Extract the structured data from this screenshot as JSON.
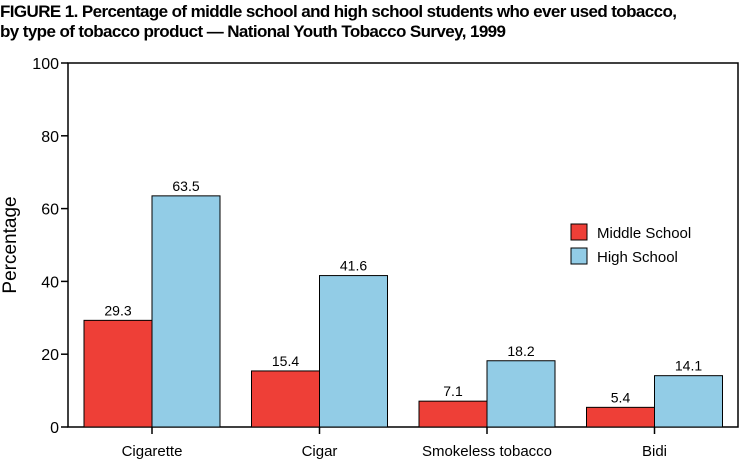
{
  "title_line1": "FIGURE 1. Percentage of middle school and high school students who ever used tobacco,",
  "title_line2": "by type of tobacco product — National Youth Tobacco Survey, 1999",
  "chart_data": {
    "type": "bar",
    "title": "FIGURE 1. Percentage of middle school and high school students who ever used tobacco, by type of tobacco product — National Youth Tobacco Survey, 1999",
    "xlabel": "",
    "ylabel": "Percentage",
    "ylim": [
      0,
      100
    ],
    "yticks": [
      "0",
      "20",
      "40",
      "60",
      "80",
      "100"
    ],
    "categories": [
      "Cigarette",
      "Cigar",
      "Smokeless tobacco",
      "Bidi"
    ],
    "series": [
      {
        "name": "Middle School",
        "color": "#ee3f37",
        "values": [
          29.3,
          15.4,
          7.1,
          5.4
        ],
        "labels": [
          "29.3",
          "15.4",
          "7.1",
          "5.4"
        ]
      },
      {
        "name": "High School",
        "color": "#92cce6",
        "values": [
          63.5,
          41.6,
          18.2,
          14.1
        ],
        "labels": [
          "63.5",
          "41.6",
          "18.2",
          "14.1"
        ]
      }
    ],
    "legend_position": "right",
    "grid": false
  }
}
